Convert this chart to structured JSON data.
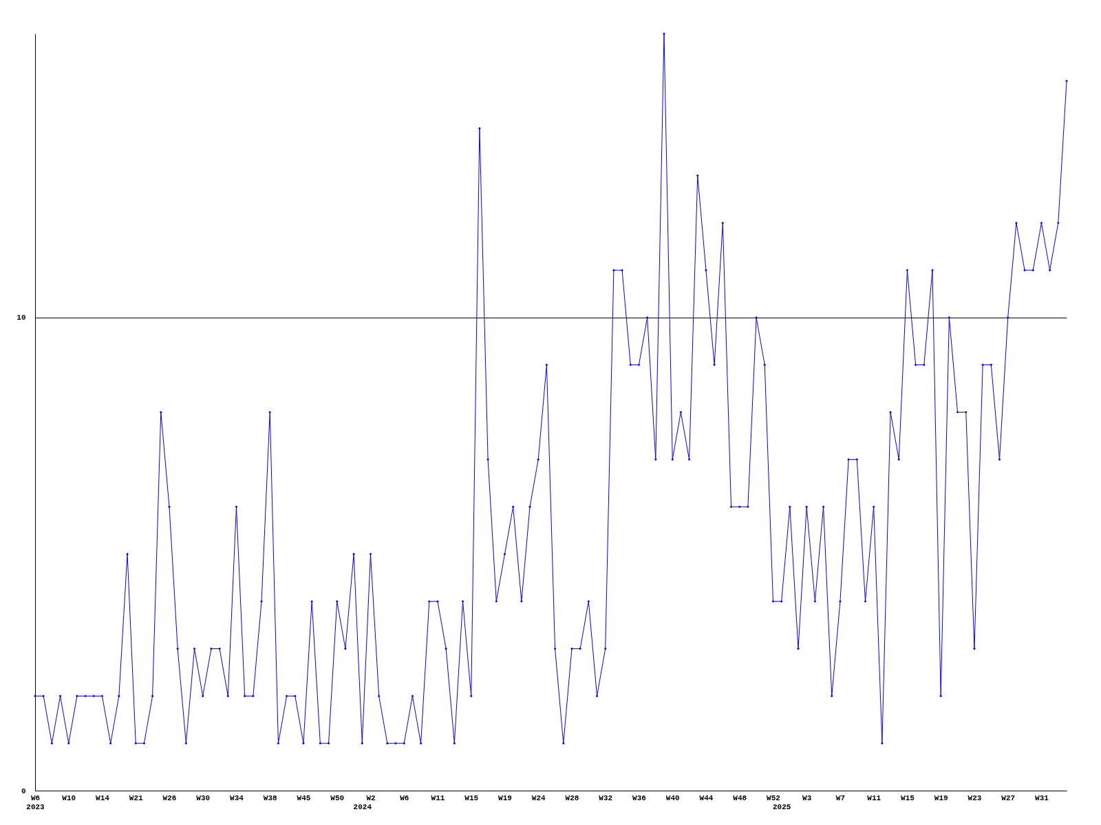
{
  "chart_data": {
    "type": "line",
    "categories": [
      "W6\n2023",
      null,
      null,
      null,
      "W10",
      null,
      null,
      null,
      "W14",
      null,
      null,
      null,
      "W21",
      null,
      null,
      null,
      "W26",
      null,
      null,
      null,
      "W30",
      null,
      null,
      null,
      "W34",
      null,
      null,
      null,
      "W38",
      null,
      null,
      null,
      "W45",
      null,
      null,
      null,
      "W50",
      null,
      null,
      "\n2024",
      "W2",
      null,
      null,
      null,
      "W6",
      null,
      null,
      null,
      "W11",
      null,
      null,
      null,
      "W15",
      null,
      null,
      null,
      "W19",
      null,
      null,
      null,
      "W24",
      null,
      null,
      null,
      "W28",
      null,
      null,
      null,
      "W32",
      null,
      null,
      null,
      "W36",
      null,
      null,
      null,
      "W40",
      null,
      null,
      null,
      "W44",
      null,
      null,
      null,
      "W48",
      null,
      null,
      null,
      "W52",
      "\n2025",
      null,
      null,
      "W3",
      null,
      null,
      null,
      "W7",
      null,
      null,
      null,
      "W11",
      null,
      null,
      null,
      "W15",
      null,
      null,
      null,
      "W19",
      null,
      null,
      null,
      "W23",
      null,
      null,
      null,
      "W27",
      null,
      null,
      null,
      "W31",
      null,
      null,
      null
    ],
    "series": [
      {
        "color": "#0000ff",
        "values": [
          2,
          2,
          1,
          2,
          1,
          2,
          2,
          2,
          2,
          1,
          2,
          5,
          1,
          1,
          2,
          8,
          6,
          3,
          1,
          3,
          2,
          3,
          3,
          2,
          6,
          2,
          2,
          4,
          8,
          1,
          2,
          2,
          1,
          4,
          1,
          1,
          4,
          3,
          5,
          1,
          5,
          2,
          1,
          1,
          1,
          2,
          1,
          4,
          4,
          3,
          1,
          4,
          2,
          14,
          7,
          4,
          5,
          6,
          4,
          6,
          7,
          9,
          3,
          1,
          3,
          3,
          4,
          2,
          3,
          11,
          11,
          9,
          9,
          10,
          7,
          16,
          7,
          8,
          7,
          13,
          11,
          9,
          12,
          6,
          6,
          6,
          10,
          9,
          4,
          4,
          6,
          3,
          6,
          4,
          6,
          2,
          4,
          7,
          7,
          4,
          6,
          1,
          8,
          7,
          11,
          9,
          9,
          11,
          2,
          10,
          8,
          8,
          3,
          9,
          9,
          7,
          10,
          12,
          11,
          11,
          12,
          11,
          12,
          15
        ]
      }
    ],
    "ylim": [
      0,
      16
    ],
    "yticks": [
      0,
      10
    ],
    "grid": "y",
    "marker": "diamond",
    "line_style": "solid",
    "legend": false
  }
}
